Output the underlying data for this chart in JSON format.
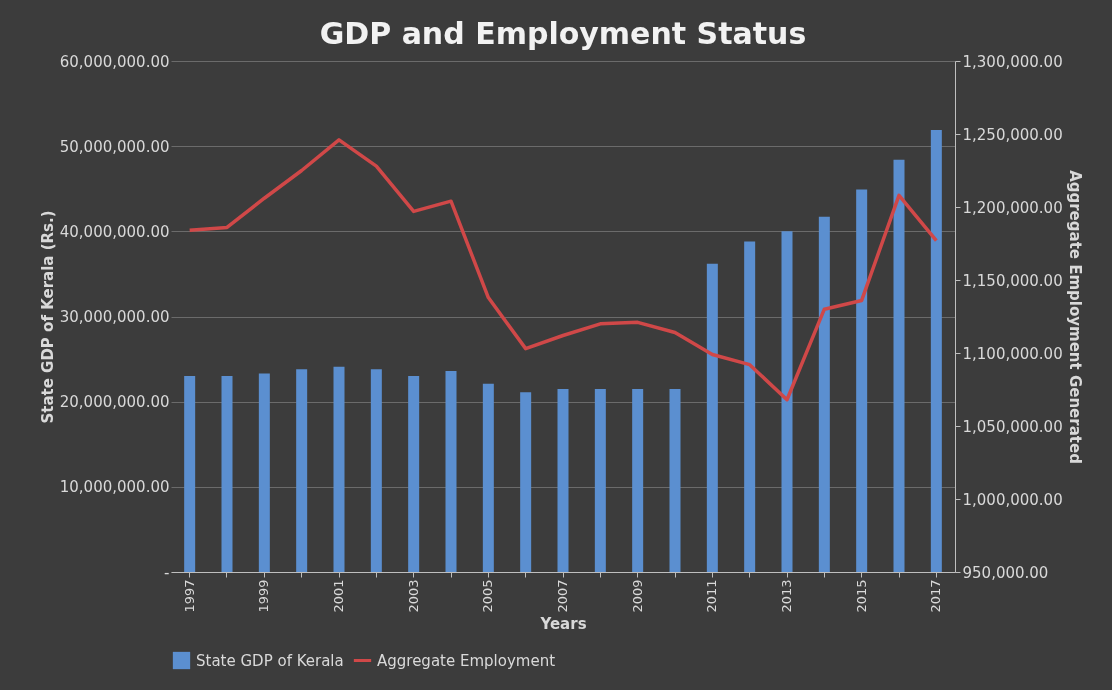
{
  "chart_data": {
    "type": "bar",
    "title": "GDP and Employment Status",
    "xlabel": "Years",
    "ylabel": "State GDP of Kerala (Rs.)",
    "y2label": "Aggregate Employment Generated",
    "categories": [
      "1997",
      null,
      "1999",
      null,
      "2001",
      null,
      "2003",
      null,
      "2005",
      null,
      "2007",
      null,
      "2009",
      null,
      "2011",
      null,
      "2013",
      null,
      "2015",
      null,
      "2017"
    ],
    "series": [
      {
        "name": "State GDP of Kerala",
        "color": "#5b8fd0",
        "values": [
          23000000,
          23000000,
          23300000,
          23800000,
          24100000,
          23800000,
          23000000,
          23600000,
          22100000,
          21100000,
          21500000,
          21500000,
          21500000,
          21500000,
          36200000,
          38800000,
          40000000,
          41700000,
          44900000,
          48400000,
          51900000
        ]
      },
      {
        "name": "Aggregate Employment",
        "type": "line",
        "axis": "y2",
        "color": "#d04848",
        "values": [
          1184000,
          1186000,
          1206000,
          1225000,
          1246000,
          1228000,
          1197000,
          1204000,
          1138000,
          1103000,
          1112000,
          1120000,
          1121000,
          1114000,
          1099000,
          1092000,
          1068000,
          1130000,
          1136000,
          1208000,
          1177000
        ]
      }
    ],
    "ylim": [
      0,
      60000000
    ],
    "yticks": [
      {
        "value": 0,
        "label": "-"
      },
      {
        "value": 10000000,
        "label": "10,000,000.00"
      },
      {
        "value": 20000000,
        "label": "20,000,000.00"
      },
      {
        "value": 30000000,
        "label": "30,000,000.00"
      },
      {
        "value": 40000000,
        "label": "40,000,000.00"
      },
      {
        "value": 50000000,
        "label": "50,000,000.00"
      },
      {
        "value": 60000000,
        "label": "60,000,000.00"
      }
    ],
    "y2lim": [
      950000,
      1300000
    ],
    "y2ticks": [
      {
        "value": 950000,
        "label": "950,000.00"
      },
      {
        "value": 1000000,
        "label": "1,000,000.00"
      },
      {
        "value": 1050000,
        "label": "1,050,000.00"
      },
      {
        "value": 1100000,
        "label": "1,100,000.00"
      },
      {
        "value": 1150000,
        "label": "1,150,000.00"
      },
      {
        "value": 1200000,
        "label": "1,200,000.00"
      },
      {
        "value": 1250000,
        "label": "1,250,000.00"
      },
      {
        "value": 1300000,
        "label": "1,300,000.00"
      }
    ],
    "grid": "y",
    "legend": "bottom"
  }
}
